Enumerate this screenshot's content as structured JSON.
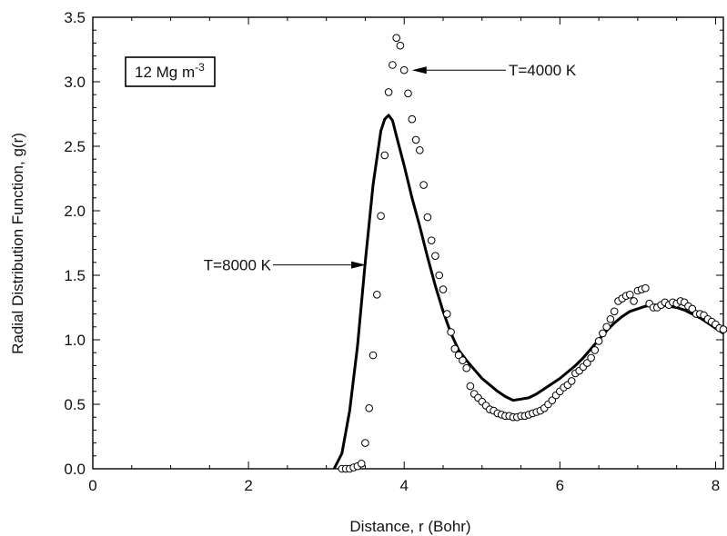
{
  "chart_data": {
    "type": "line",
    "title": "",
    "xlabel": "Distance, r (Bohr)",
    "ylabel": "Radial Distribution Function, g(r)",
    "xlim": [
      0,
      8.1
    ],
    "ylim": [
      0,
      3.5
    ],
    "xticks": [
      "0",
      "2",
      "4",
      "6",
      "8"
    ],
    "yticks": [
      "0.0",
      "0.5",
      "1.0",
      "1.5",
      "2.0",
      "2.5",
      "3.0",
      "3.5"
    ],
    "grid": false,
    "box_label": "12 Mg m",
    "box_label_sup": "-3",
    "series": [
      {
        "name": "T=8000 K",
        "style": "solid-line",
        "color": "#000000",
        "x": [
          3.1,
          3.2,
          3.3,
          3.4,
          3.5,
          3.6,
          3.7,
          3.75,
          3.8,
          3.85,
          3.9,
          4.0,
          4.1,
          4.2,
          4.3,
          4.4,
          4.5,
          4.6,
          4.7,
          4.8,
          4.9,
          5.0,
          5.1,
          5.2,
          5.3,
          5.4,
          5.5,
          5.6,
          5.7,
          5.8,
          5.9,
          6.0,
          6.1,
          6.2,
          6.3,
          6.4,
          6.5,
          6.6,
          6.7,
          6.8,
          6.9,
          7.0,
          7.1,
          7.2,
          7.3,
          7.4,
          7.5,
          7.6,
          7.7,
          7.8,
          7.9,
          8.0,
          8.1
        ],
        "y": [
          0.0,
          0.12,
          0.45,
          0.95,
          1.6,
          2.2,
          2.62,
          2.71,
          2.74,
          2.7,
          2.58,
          2.35,
          2.1,
          1.88,
          1.64,
          1.42,
          1.22,
          1.05,
          0.92,
          0.84,
          0.77,
          0.7,
          0.65,
          0.6,
          0.56,
          0.53,
          0.54,
          0.55,
          0.58,
          0.62,
          0.66,
          0.7,
          0.75,
          0.8,
          0.86,
          0.93,
          1.0,
          1.07,
          1.13,
          1.18,
          1.22,
          1.24,
          1.26,
          1.27,
          1.27,
          1.26,
          1.25,
          1.23,
          1.2,
          1.17,
          1.13,
          1.09,
          1.05
        ]
      },
      {
        "name": "T=4000 K",
        "style": "open-circles",
        "color": "#000000",
        "x": [
          3.2,
          3.25,
          3.3,
          3.35,
          3.4,
          3.45,
          3.5,
          3.55,
          3.6,
          3.65,
          3.7,
          3.75,
          3.8,
          3.85,
          3.9,
          3.95,
          4.0,
          4.05,
          4.1,
          4.15,
          4.2,
          4.25,
          4.3,
          4.35,
          4.4,
          4.45,
          4.5,
          4.55,
          4.6,
          4.65,
          4.7,
          4.75,
          4.8,
          4.85,
          4.9,
          4.95,
          5.0,
          5.05,
          5.1,
          5.15,
          5.2,
          5.25,
          5.3,
          5.35,
          5.4,
          5.45,
          5.5,
          5.55,
          5.6,
          5.65,
          5.7,
          5.75,
          5.8,
          5.85,
          5.9,
          5.95,
          6.0,
          6.05,
          6.1,
          6.15,
          6.2,
          6.25,
          6.3,
          6.35,
          6.4,
          6.45,
          6.5,
          6.55,
          6.6,
          6.65,
          6.7,
          6.75,
          6.8,
          6.85,
          6.9,
          6.95,
          7.0,
          7.05,
          7.1,
          7.15,
          7.2,
          7.25,
          7.3,
          7.35,
          7.4,
          7.45,
          7.5,
          7.55,
          7.6,
          7.65,
          7.7,
          7.75,
          7.8,
          7.85,
          7.9,
          7.95,
          8.0,
          8.05,
          8.1
        ],
        "y": [
          0.0,
          0.0,
          0.0,
          0.01,
          0.02,
          0.04,
          0.2,
          0.47,
          0.88,
          1.35,
          1.96,
          2.43,
          2.92,
          3.13,
          3.34,
          3.28,
          3.09,
          2.91,
          2.71,
          2.55,
          2.47,
          2.2,
          1.95,
          1.77,
          1.65,
          1.5,
          1.39,
          1.2,
          1.06,
          0.93,
          0.88,
          0.84,
          0.78,
          0.64,
          0.58,
          0.55,
          0.52,
          0.49,
          0.46,
          0.45,
          0.43,
          0.42,
          0.41,
          0.41,
          0.4,
          0.4,
          0.41,
          0.41,
          0.42,
          0.43,
          0.44,
          0.45,
          0.47,
          0.5,
          0.53,
          0.57,
          0.6,
          0.63,
          0.65,
          0.68,
          0.74,
          0.76,
          0.79,
          0.82,
          0.86,
          0.92,
          0.99,
          1.05,
          1.1,
          1.16,
          1.22,
          1.3,
          1.32,
          1.34,
          1.35,
          1.3,
          1.38,
          1.39,
          1.4,
          1.28,
          1.25,
          1.25,
          1.27,
          1.29,
          1.27,
          1.29,
          1.28,
          1.3,
          1.29,
          1.26,
          1.24,
          1.2,
          1.2,
          1.19,
          1.16,
          1.14,
          1.12,
          1.09,
          1.08
        ]
      }
    ],
    "annotations": [
      {
        "text": "T=4000 K",
        "series": "T=4000 K",
        "arrow_to": [
          4.03,
          3.09
        ]
      },
      {
        "text": "T=8000 K",
        "series": "T=8000 K",
        "arrow_to": [
          3.53,
          1.58
        ]
      }
    ]
  }
}
